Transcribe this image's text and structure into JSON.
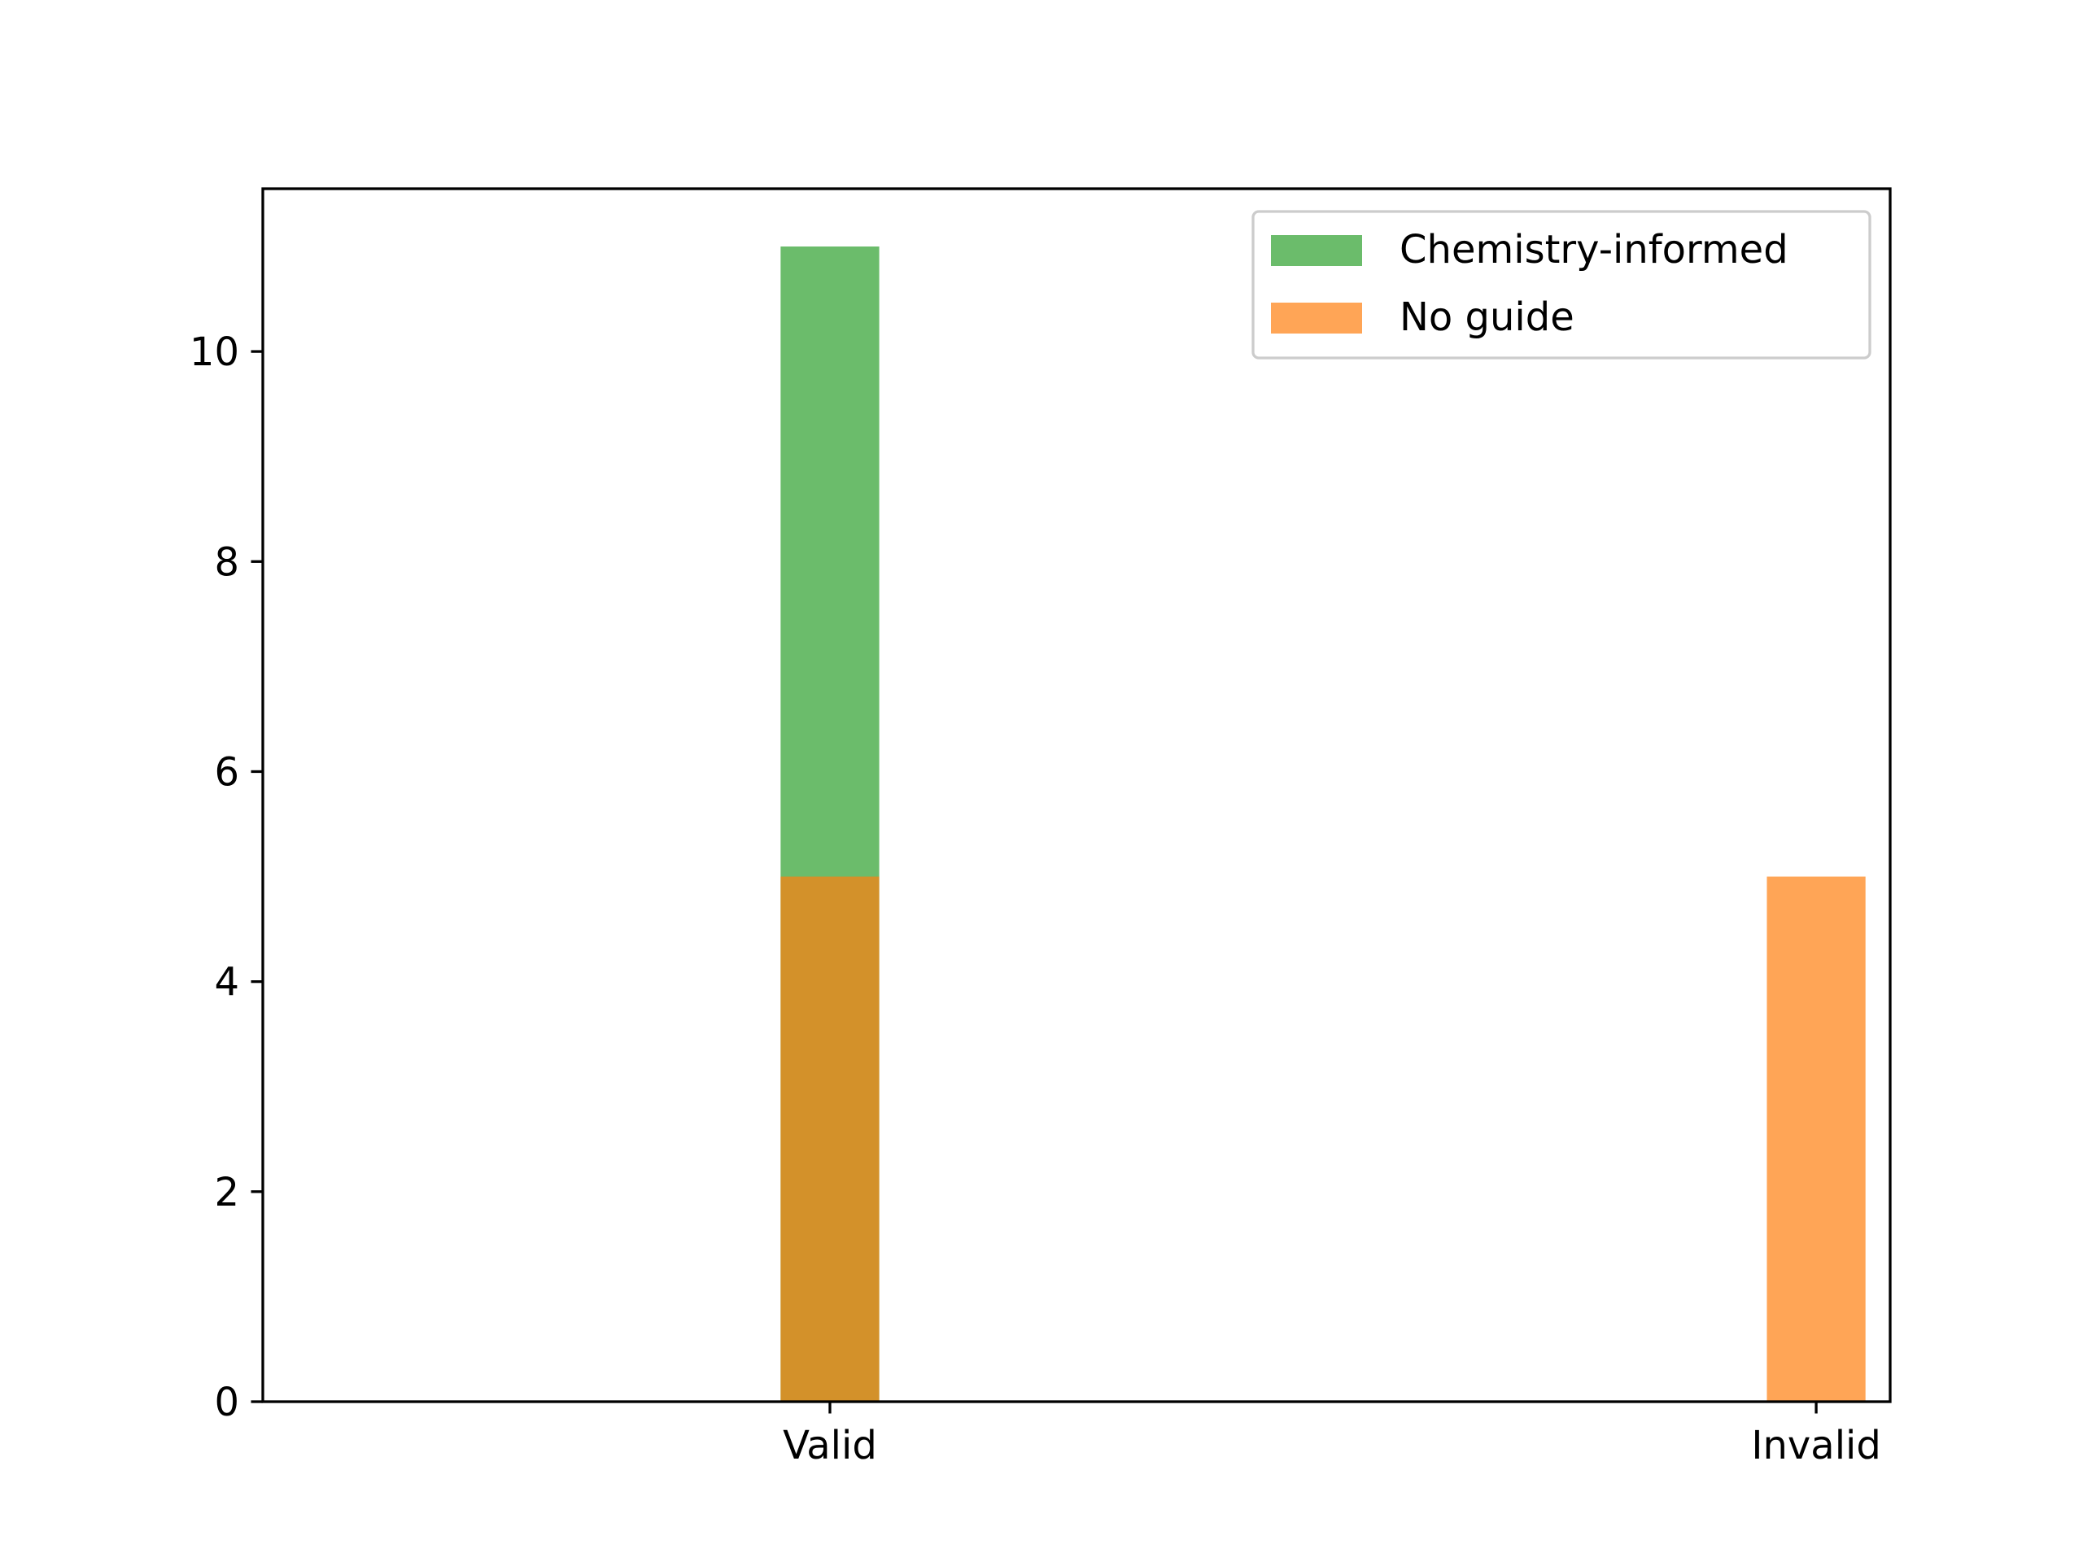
{
  "chart_data": {
    "type": "bar",
    "title": "",
    "xlabel": "",
    "ylabel": "",
    "x_ticks": [
      {
        "label": "Valid",
        "value": 0
      },
      {
        "label": "Invalid",
        "value": 1
      }
    ],
    "xlim": [
      -0.575,
      1.075
    ],
    "ylim": [
      0,
      11.55
    ],
    "y_ticks": [
      0,
      2,
      4,
      6,
      8,
      10
    ],
    "bar_width": 0.1,
    "series": [
      {
        "name": "Chemistry-informed",
        "color": "#2ca02c",
        "alpha": 0.7,
        "points": [
          {
            "x": 0,
            "value": 11
          },
          {
            "x": 1,
            "value": 0
          }
        ]
      },
      {
        "name": "No guide",
        "color": "#ff7f0e",
        "alpha": 0.7,
        "points": [
          {
            "x": 0,
            "value": 5
          },
          {
            "x": 1,
            "value": 5
          }
        ]
      }
    ],
    "grid": false,
    "legend": {
      "position": "top-right"
    }
  }
}
